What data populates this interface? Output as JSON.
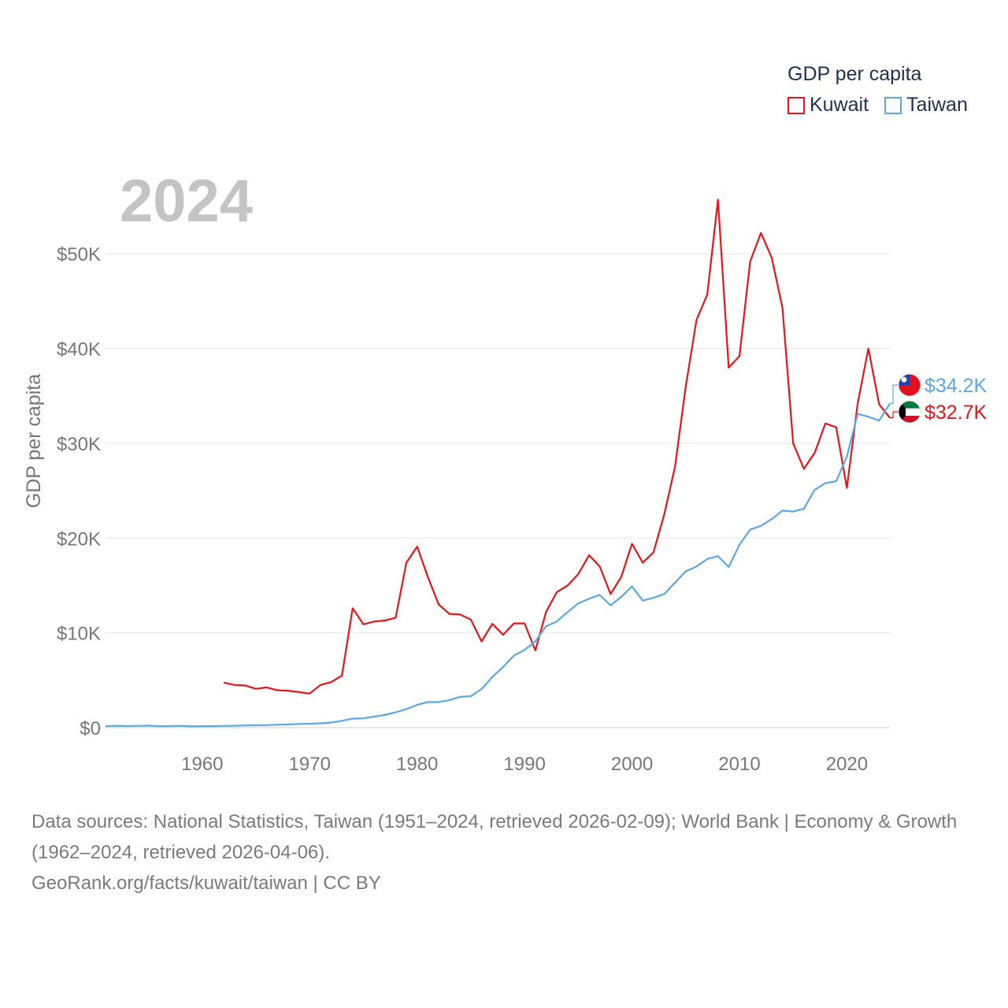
{
  "legend": {
    "title": "GDP per capita",
    "items": [
      {
        "name": "Kuwait",
        "color": "#e8141b"
      },
      {
        "name": "Taiwan",
        "color": "#5aa8e6"
      }
    ]
  },
  "year_label": "2024",
  "source": {
    "line1": "Data sources: National Statistics, Taiwan (1951–2024, retrieved 2026-02-09); World Bank | Economy & Growth (1962–2024, retrieved 2026-04-06).",
    "line2": "GeoRank.org/facts/kuwait/taiwan | CC BY"
  },
  "chart_data": {
    "type": "line",
    "title": "GDP per capita",
    "xlabel": "",
    "ylabel": "GDP per capita",
    "xlim": [
      1951,
      2024
    ],
    "ylim": [
      0,
      57000
    ],
    "y_ticks": [
      0,
      10000,
      20000,
      30000,
      40000,
      50000
    ],
    "y_tick_labels": [
      "$0",
      "$10K",
      "$20K",
      "$30K",
      "$40K",
      "$50K"
    ],
    "x_ticks": [
      1960,
      1970,
      1980,
      1990,
      2000,
      2010,
      2020
    ],
    "x_tick_labels": [
      "1960",
      "1970",
      "1980",
      "1990",
      "2000",
      "2010",
      "2020"
    ],
    "grid": true,
    "series": [
      {
        "name": "Kuwait",
        "color": "#e8141b",
        "end_label": "$32.7K",
        "flag": "kuwait-flag-icon",
        "points": [
          [
            1962,
            4750
          ],
          [
            1963,
            4500
          ],
          [
            1964,
            4450
          ],
          [
            1965,
            4100
          ],
          [
            1966,
            4250
          ],
          [
            1967,
            3950
          ],
          [
            1968,
            3900
          ],
          [
            1969,
            3750
          ],
          [
            1970,
            3600
          ],
          [
            1971,
            4500
          ],
          [
            1972,
            4800
          ],
          [
            1973,
            5500
          ],
          [
            1974,
            12600
          ],
          [
            1975,
            10900
          ],
          [
            1976,
            11200
          ],
          [
            1977,
            11300
          ],
          [
            1978,
            11600
          ],
          [
            1979,
            17400
          ],
          [
            1980,
            19100
          ],
          [
            1981,
            15900
          ],
          [
            1982,
            13000
          ],
          [
            1983,
            12000
          ],
          [
            1984,
            11950
          ],
          [
            1985,
            11400
          ],
          [
            1986,
            9100
          ],
          [
            1987,
            10950
          ],
          [
            1988,
            9800
          ],
          [
            1989,
            11000
          ],
          [
            1990,
            11000
          ],
          [
            1991,
            8150
          ],
          [
            1992,
            12200
          ],
          [
            1993,
            14300
          ],
          [
            1994,
            15000
          ],
          [
            1995,
            16200
          ],
          [
            1996,
            18200
          ],
          [
            1997,
            17000
          ],
          [
            1998,
            14100
          ],
          [
            1999,
            15900
          ],
          [
            2000,
            19400
          ],
          [
            2001,
            17400
          ],
          [
            2002,
            18500
          ],
          [
            2003,
            22500
          ],
          [
            2004,
            27500
          ],
          [
            2005,
            36000
          ],
          [
            2006,
            43000
          ],
          [
            2007,
            45700
          ],
          [
            2008,
            55700
          ],
          [
            2009,
            38000
          ],
          [
            2010,
            39200
          ],
          [
            2011,
            49200
          ],
          [
            2012,
            52200
          ],
          [
            2013,
            49600
          ],
          [
            2014,
            44300
          ],
          [
            2015,
            30000
          ],
          [
            2016,
            27300
          ],
          [
            2017,
            29000
          ],
          [
            2018,
            32100
          ],
          [
            2019,
            31700
          ],
          [
            2020,
            25300
          ],
          [
            2021,
            34200
          ],
          [
            2022,
            40000
          ],
          [
            2023,
            34100
          ],
          [
            2024,
            32700
          ]
        ]
      },
      {
        "name": "Taiwan",
        "color": "#5aa8e6",
        "end_label": "$34.2K",
        "flag": "taiwan-flag-icon",
        "points": [
          [
            1951,
            150
          ],
          [
            1952,
            200
          ],
          [
            1953,
            170
          ],
          [
            1954,
            190
          ],
          [
            1955,
            210
          ],
          [
            1956,
            150
          ],
          [
            1957,
            170
          ],
          [
            1958,
            190
          ],
          [
            1959,
            140
          ],
          [
            1960,
            160
          ],
          [
            1961,
            160
          ],
          [
            1962,
            180
          ],
          [
            1963,
            200
          ],
          [
            1964,
            230
          ],
          [
            1965,
            250
          ],
          [
            1966,
            270
          ],
          [
            1967,
            310
          ],
          [
            1968,
            340
          ],
          [
            1969,
            390
          ],
          [
            1970,
            410
          ],
          [
            1971,
            460
          ],
          [
            1972,
            540
          ],
          [
            1973,
            720
          ],
          [
            1974,
            950
          ],
          [
            1975,
            980
          ],
          [
            1976,
            1160
          ],
          [
            1977,
            1350
          ],
          [
            1978,
            1620
          ],
          [
            1979,
            1960
          ],
          [
            1980,
            2400
          ],
          [
            1981,
            2700
          ],
          [
            1982,
            2700
          ],
          [
            1983,
            2900
          ],
          [
            1984,
            3250
          ],
          [
            1985,
            3320
          ],
          [
            1986,
            4070
          ],
          [
            1987,
            5350
          ],
          [
            1988,
            6400
          ],
          [
            1989,
            7600
          ],
          [
            1990,
            8200
          ],
          [
            1991,
            9100
          ],
          [
            1992,
            10700
          ],
          [
            1993,
            11200
          ],
          [
            1994,
            12200
          ],
          [
            1995,
            13100
          ],
          [
            1996,
            13600
          ],
          [
            1997,
            14000
          ],
          [
            1998,
            12900
          ],
          [
            1999,
            13800
          ],
          [
            2000,
            14900
          ],
          [
            2001,
            13400
          ],
          [
            2002,
            13700
          ],
          [
            2003,
            14100
          ],
          [
            2004,
            15300
          ],
          [
            2005,
            16500
          ],
          [
            2006,
            17000
          ],
          [
            2007,
            17800
          ],
          [
            2008,
            18100
          ],
          [
            2009,
            16950
          ],
          [
            2010,
            19300
          ],
          [
            2011,
            20900
          ],
          [
            2012,
            21300
          ],
          [
            2013,
            22000
          ],
          [
            2014,
            22900
          ],
          [
            2015,
            22800
          ],
          [
            2016,
            23100
          ],
          [
            2017,
            25100
          ],
          [
            2018,
            25800
          ],
          [
            2019,
            26000
          ],
          [
            2020,
            28600
          ],
          [
            2021,
            33100
          ],
          [
            2022,
            32800
          ],
          [
            2023,
            32400
          ],
          [
            2024,
            34200
          ]
        ]
      }
    ]
  }
}
